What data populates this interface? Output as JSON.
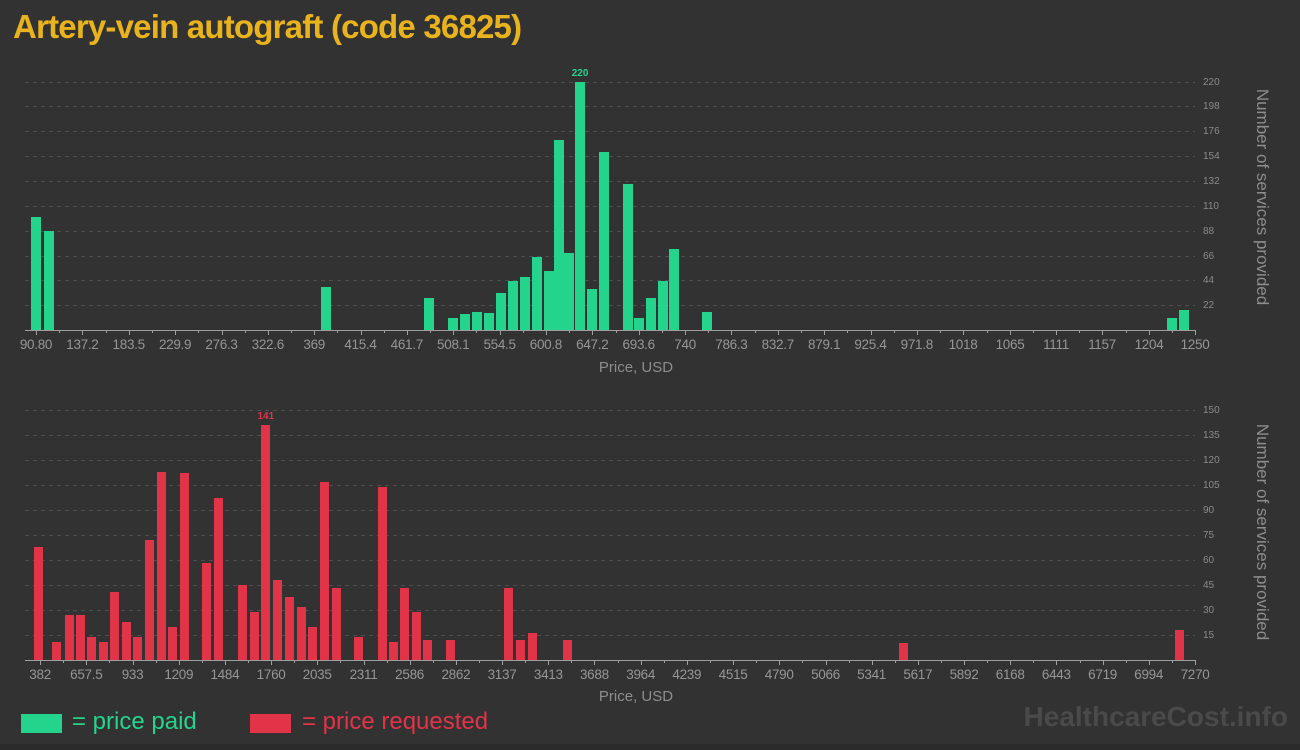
{
  "title": "Artery-vein autograft (code 36825)",
  "watermark": "HealthcareCost.info",
  "colors": {
    "background": "#323232",
    "title": "#e8b31d",
    "watermark": "#4a4a4a",
    "paid": "#25d48c",
    "requested": "#e13449"
  },
  "legend": [
    {
      "label": "= price paid",
      "color": "#25d48c"
    },
    {
      "label": "= price requested",
      "color": "#e13449"
    }
  ],
  "chart_data": [
    {
      "type": "bar",
      "series_name": "price paid",
      "color": "#25d48c",
      "xlabel": "Price, USD",
      "ylabel": "Number of services provided",
      "grid": "horizontal-dashed",
      "legend_position": "bottom-left",
      "xlim": [
        79.8,
        1250
      ],
      "ylim": [
        0,
        232
      ],
      "y_ticks": [
        22,
        44,
        66,
        88,
        110,
        132,
        154,
        176,
        198,
        220
      ],
      "x_tick_labels": [
        "90.80",
        "137.2",
        "183.5",
        "229.9",
        "276.3",
        "322.6",
        "369",
        "415.4",
        "461.7",
        "508.1",
        "554.5",
        "600.8",
        "647.2",
        "693.6",
        "740",
        "786.3",
        "832.7",
        "879.1",
        "925.4",
        "971.8",
        "1018",
        "1065",
        "1111",
        "1157",
        "1204",
        "1250"
      ],
      "max_label": "220",
      "points": [
        [
          91,
          100
        ],
        [
          104,
          88
        ],
        [
          381,
          38
        ],
        [
          484,
          28
        ],
        [
          508,
          11
        ],
        [
          520,
          14
        ],
        [
          532,
          16
        ],
        [
          544,
          15
        ],
        [
          556,
          33
        ],
        [
          568,
          43
        ],
        [
          580,
          47
        ],
        [
          592,
          65
        ],
        [
          604,
          52
        ],
        [
          614,
          168
        ],
        [
          624,
          68
        ],
        [
          635,
          220
        ],
        [
          647,
          36
        ],
        [
          659,
          158
        ],
        [
          683,
          129
        ],
        [
          694,
          11
        ],
        [
          706,
          28
        ],
        [
          718,
          43
        ],
        [
          729,
          72
        ],
        [
          762,
          16
        ],
        [
          1227,
          11
        ],
        [
          1239,
          18
        ]
      ]
    },
    {
      "type": "bar",
      "series_name": "price requested",
      "color": "#e13449",
      "xlabel": "Price, USD",
      "ylabel": "Number of services provided",
      "grid": "horizontal-dashed",
      "legend_position": "bottom-left",
      "xlim": [
        292,
        7270
      ],
      "ylim": [
        0,
        153
      ],
      "y_ticks": [
        15,
        30,
        45,
        60,
        75,
        90,
        105,
        120,
        135,
        150
      ],
      "x_tick_labels": [
        "382",
        "657.5",
        "933",
        "1209",
        "1484",
        "1760",
        "2035",
        "2311",
        "2586",
        "2862",
        "3137",
        "3413",
        "3688",
        "3964",
        "4239",
        "4515",
        "4790",
        "5066",
        "5341",
        "5617",
        "5892",
        "6168",
        "6443",
        "6719",
        "6994",
        "7270"
      ],
      "max_label": "141",
      "points": [
        [
          375,
          68
        ],
        [
          477,
          11
        ],
        [
          555,
          27
        ],
        [
          625,
          27
        ],
        [
          691,
          14
        ],
        [
          760,
          11
        ],
        [
          828,
          41
        ],
        [
          896,
          23
        ],
        [
          964,
          14
        ],
        [
          1033,
          72
        ],
        [
          1105,
          113
        ],
        [
          1171,
          20
        ],
        [
          1240,
          112
        ],
        [
          1377,
          58
        ],
        [
          1448,
          97
        ],
        [
          1588,
          45
        ],
        [
          1661,
          29
        ],
        [
          1728,
          141
        ],
        [
          1800,
          48
        ],
        [
          1869,
          38
        ],
        [
          1939,
          32
        ],
        [
          2009,
          20
        ],
        [
          2079,
          107
        ],
        [
          2148,
          43
        ],
        [
          2281,
          14
        ],
        [
          2423,
          104
        ],
        [
          2492,
          11
        ],
        [
          2558,
          43
        ],
        [
          2626,
          29
        ],
        [
          2694,
          12
        ],
        [
          2830,
          12
        ],
        [
          3174,
          43
        ],
        [
          3245,
          12
        ],
        [
          3317,
          16
        ],
        [
          3527,
          12
        ],
        [
          5530,
          10
        ],
        [
          7180,
          18
        ]
      ]
    }
  ]
}
